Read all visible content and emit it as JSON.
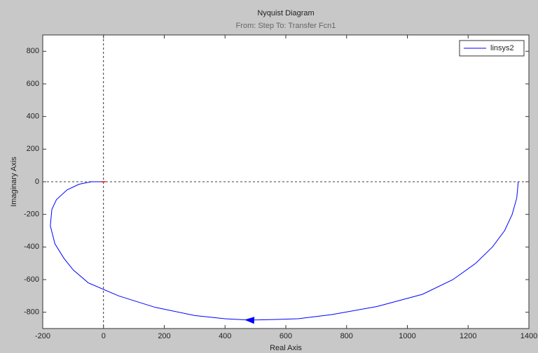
{
  "chart_data": {
    "type": "line",
    "title": "Nyquist Diagram",
    "subtitle": "From: Step  To: Transfer Fcn1",
    "x_label": "Real Axis",
    "y_label": "Imaginary Axis",
    "series": [
      {
        "name": "linsys2",
        "color": "#0000ff",
        "x": [
          1365,
          1360,
          1345,
          1320,
          1280,
          1225,
          1150,
          1050,
          900,
          750,
          640,
          560,
          480,
          400,
          300,
          170,
          50,
          -50,
          -100,
          -130,
          -160,
          -175,
          -170,
          -155,
          -120,
          -80,
          -40,
          0
        ],
        "values": [
          0,
          -100,
          -200,
          -300,
          -400,
          -500,
          -600,
          -690,
          -765,
          -815,
          -840,
          -845,
          -848,
          -840,
          -820,
          -770,
          -700,
          -620,
          -540,
          -470,
          -380,
          -270,
          -170,
          -110,
          -50,
          -15,
          0,
          0
        ]
      }
    ],
    "xlim": [
      -200,
      1400
    ],
    "xticks": [
      -200,
      0,
      200,
      400,
      600,
      800,
      1000,
      1200,
      1400
    ],
    "ylim": [
      -900,
      900
    ],
    "yticks": [
      -800,
      -600,
      -400,
      -200,
      0,
      200,
      400,
      600,
      800
    ],
    "legend_position": "upper right",
    "grid": false
  }
}
